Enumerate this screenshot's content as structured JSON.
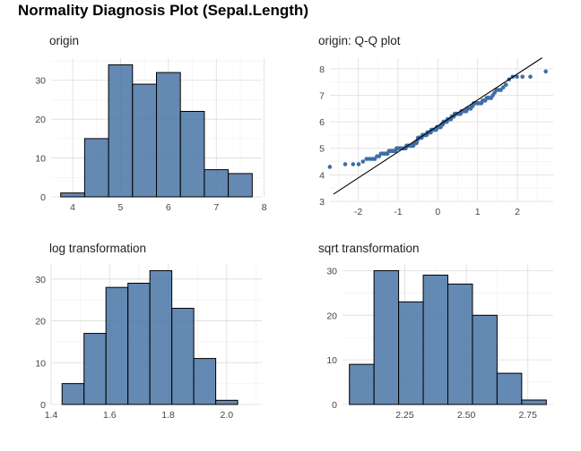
{
  "title": "Normality Diagnosis Plot (Sepal.Length)",
  "chart_data": [
    {
      "type": "bar",
      "panel_title": "origin",
      "bins": [
        {
          "x0": 3.75,
          "x1": 4.25,
          "count": 1
        },
        {
          "x0": 4.25,
          "x1": 4.75,
          "count": 15
        },
        {
          "x0": 4.75,
          "x1": 5.25,
          "count": 34
        },
        {
          "x0": 5.25,
          "x1": 5.75,
          "count": 29
        },
        {
          "x0": 5.75,
          "x1": 6.25,
          "count": 32
        },
        {
          "x0": 6.25,
          "x1": 6.75,
          "count": 22
        },
        {
          "x0": 6.75,
          "x1": 7.25,
          "count": 7
        },
        {
          "x0": 7.25,
          "x1": 7.75,
          "count": 6
        }
      ],
      "xlim": [
        3.55,
        7.95
      ],
      "ylim": [
        0,
        35.7
      ],
      "xticks": [
        4,
        5,
        6,
        7,
        8
      ],
      "xtick_labels": [
        "4",
        "5",
        "6",
        "7",
        "8"
      ],
      "yticks": [
        0,
        10,
        20,
        30
      ],
      "ytick_labels": [
        "0",
        "10",
        "20",
        "30"
      ],
      "grid": true
    },
    {
      "type": "scatter",
      "panel_title": "origin: Q-Q plot",
      "sample_values": [
        4.3,
        4.4,
        4.4,
        4.4,
        4.5,
        4.6,
        4.6,
        4.6,
        4.6,
        4.7,
        4.7,
        4.8,
        4.8,
        4.8,
        4.8,
        4.8,
        4.9,
        4.9,
        4.9,
        4.9,
        4.9,
        4.9,
        5.0,
        5.0,
        5.0,
        5.0,
        5.0,
        5.0,
        5.0,
        5.0,
        5.0,
        5.0,
        5.1,
        5.1,
        5.1,
        5.1,
        5.1,
        5.1,
        5.1,
        5.1,
        5.1,
        5.2,
        5.2,
        5.2,
        5.2,
        5.3,
        5.4,
        5.4,
        5.4,
        5.4,
        5.4,
        5.4,
        5.5,
        5.5,
        5.5,
        5.5,
        5.5,
        5.5,
        5.5,
        5.6,
        5.6,
        5.6,
        5.6,
        5.6,
        5.6,
        5.7,
        5.7,
        5.7,
        5.7,
        5.7,
        5.7,
        5.7,
        5.7,
        5.8,
        5.8,
        5.8,
        5.8,
        5.8,
        5.8,
        5.8,
        5.9,
        5.9,
        5.9,
        6.0,
        6.0,
        6.0,
        6.0,
        6.0,
        6.0,
        6.1,
        6.1,
        6.1,
        6.1,
        6.1,
        6.1,
        6.2,
        6.2,
        6.2,
        6.2,
        6.3,
        6.3,
        6.3,
        6.3,
        6.3,
        6.3,
        6.3,
        6.3,
        6.3,
        6.4,
        6.4,
        6.4,
        6.4,
        6.4,
        6.4,
        6.4,
        6.5,
        6.5,
        6.5,
        6.5,
        6.5,
        6.6,
        6.6,
        6.7,
        6.7,
        6.7,
        6.7,
        6.7,
        6.7,
        6.7,
        6.7,
        6.8,
        6.8,
        6.8,
        6.9,
        6.9,
        6.9,
        6.9,
        7.0,
        7.1,
        7.2,
        7.2,
        7.2,
        7.3,
        7.4,
        7.6,
        7.7,
        7.7,
        7.7,
        7.7,
        7.9
      ],
      "reference_line": {
        "intercept": 5.843,
        "slope": 0.981
      },
      "xlim": [
        -2.71,
        2.9
      ],
      "ylim": [
        3.0,
        8.4
      ],
      "xticks": [
        -2,
        -1,
        0,
        1,
        2
      ],
      "xtick_labels": [
        "-2",
        "-1",
        "0",
        "1",
        "2"
      ],
      "yticks": [
        3,
        4,
        5,
        6,
        7,
        8
      ],
      "ytick_labels": [
        "3",
        "4",
        "5",
        "6",
        "7",
        "8"
      ],
      "grid": true
    },
    {
      "type": "bar",
      "panel_title": "log transformation",
      "bins": [
        {
          "x0": 1.4375,
          "x1": 1.5125,
          "count": 5
        },
        {
          "x0": 1.5125,
          "x1": 1.5875,
          "count": 17
        },
        {
          "x0": 1.5875,
          "x1": 1.6625,
          "count": 28
        },
        {
          "x0": 1.6625,
          "x1": 1.7375,
          "count": 29
        },
        {
          "x0": 1.7375,
          "x1": 1.8125,
          "count": 32
        },
        {
          "x0": 1.8125,
          "x1": 1.8875,
          "count": 23
        },
        {
          "x0": 1.8875,
          "x1": 1.9625,
          "count": 11
        },
        {
          "x0": 1.9625,
          "x1": 2.0375,
          "count": 1
        }
      ],
      "xlim": [
        1.4,
        2.12
      ],
      "ylim": [
        0,
        33.6
      ],
      "xticks": [
        1.4,
        1.6,
        1.8,
        2.0
      ],
      "xtick_labels": [
        "1.4",
        "1.6",
        "1.8",
        "2.0"
      ],
      "yticks": [
        0,
        10,
        20,
        30
      ],
      "ytick_labels": [
        "0",
        "10",
        "20",
        "30"
      ],
      "grid": true
    },
    {
      "type": "bar",
      "panel_title": "sqrt transformation",
      "bins": [
        {
          "x0": 2.025,
          "x1": 2.125,
          "count": 9
        },
        {
          "x0": 2.125,
          "x1": 2.225,
          "count": 30
        },
        {
          "x0": 2.225,
          "x1": 2.325,
          "count": 23
        },
        {
          "x0": 2.325,
          "x1": 2.425,
          "count": 29
        },
        {
          "x0": 2.425,
          "x1": 2.525,
          "count": 27
        },
        {
          "x0": 2.525,
          "x1": 2.625,
          "count": 20
        },
        {
          "x0": 2.625,
          "x1": 2.725,
          "count": 7
        },
        {
          "x0": 2.725,
          "x1": 2.825,
          "count": 1
        }
      ],
      "xlim": [
        1.997,
        2.853
      ],
      "ylim": [
        0,
        31.5
      ],
      "xticks": [
        2.25,
        2.5,
        2.75
      ],
      "xtick_labels": [
        "2.25",
        "2.50",
        "2.75"
      ],
      "yticks": [
        0,
        10,
        20,
        30
      ],
      "ytick_labels": [
        "0",
        "10",
        "20",
        "30"
      ],
      "grid": true
    }
  ],
  "colors": {
    "bar_fill": "#4e79a7",
    "point": "#3f6ea6",
    "grid": "#dcdcdc"
  }
}
